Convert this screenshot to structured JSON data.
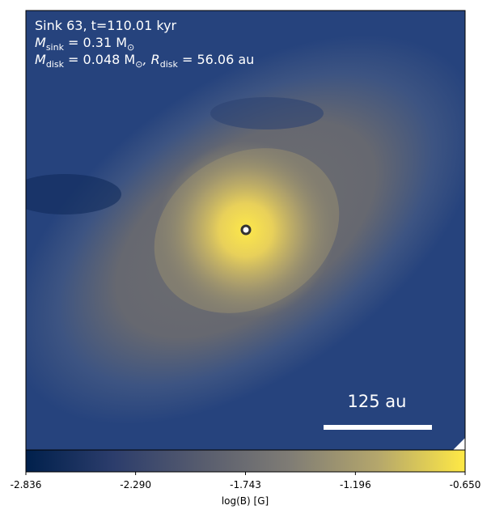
{
  "chart_data": {
    "type": "image",
    "annotations": [
      [
        "Sink 63, t=110.01 kyr"
      ],
      [
        "M",
        "sink",
        " = 0.31 M",
        "⊙"
      ],
      [
        "M",
        "disk",
        " = 0.048 M",
        "⊙",
        ", R",
        "disk",
        " = 56.06 au"
      ]
    ],
    "scale_bar": "125 au",
    "colorbar": {
      "label": "log(B) [G]",
      "lim": [
        -2.836,
        -0.65
      ],
      "ticks": [
        {
          "value": -2.836,
          "label": "-2.836"
        },
        {
          "value": -2.29,
          "label": "-2.290"
        },
        {
          "value": -1.743,
          "label": "-1.743"
        },
        {
          "value": -1.196,
          "label": "-1.196"
        },
        {
          "value": -0.65,
          "label": "-0.650"
        }
      ]
    }
  }
}
